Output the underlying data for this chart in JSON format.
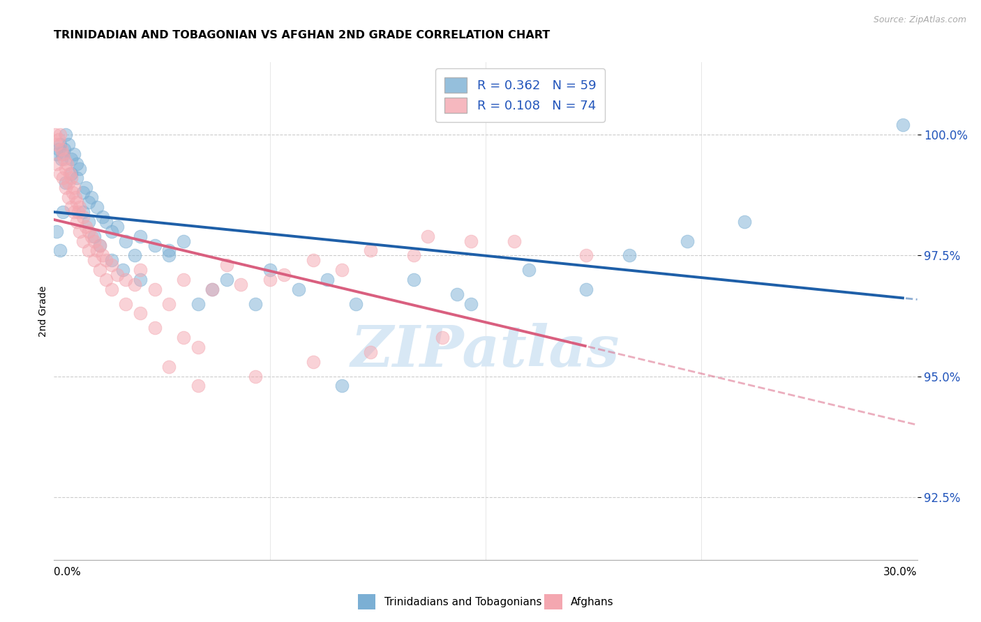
{
  "title": "TRINIDADIAN AND TOBAGONIAN VS AFGHAN 2ND GRADE CORRELATION CHART",
  "source": "Source: ZipAtlas.com",
  "ylabel": "2nd Grade",
  "yticks": [
    92.5,
    95.0,
    97.5,
    100.0
  ],
  "ytick_labels": [
    "92.5%",
    "95.0%",
    "97.5%",
    "100.0%"
  ],
  "xmin": 0.0,
  "xmax": 30.0,
  "ymin": 91.2,
  "ymax": 101.5,
  "legend_blue_label": "R = 0.362   N = 59",
  "legend_pink_label": "R = 0.108   N = 74",
  "blue_color": "#7BAFD4",
  "pink_color": "#F4A7B0",
  "line_blue_color": "#1E5FA8",
  "line_pink_color": "#D95F7F",
  "watermark_text": "ZIPatlas",
  "footer_legend_blue": "Trinidadians and Tobagonians",
  "footer_legend_pink": "Afghans",
  "blue_scatter_x": [
    0.1,
    0.15,
    0.2,
    0.25,
    0.3,
    0.35,
    0.4,
    0.5,
    0.6,
    0.7,
    0.8,
    0.9,
    1.0,
    1.1,
    1.2,
    1.3,
    1.5,
    1.7,
    1.8,
    2.0,
    2.2,
    2.5,
    2.8,
    3.0,
    3.5,
    4.0,
    4.5,
    5.0,
    6.0,
    7.5,
    8.5,
    9.5,
    10.5,
    12.5,
    14.5,
    16.5,
    18.5,
    20.0,
    22.0,
    24.0,
    0.1,
    0.2,
    0.3,
    0.4,
    0.6,
    0.8,
    1.0,
    1.2,
    1.4,
    1.6,
    2.0,
    2.4,
    3.0,
    4.0,
    5.5,
    7.0,
    10.0,
    14.0,
    29.5
  ],
  "blue_scatter_y": [
    99.6,
    99.7,
    99.8,
    99.5,
    99.6,
    99.7,
    100.0,
    99.8,
    99.5,
    99.6,
    99.4,
    99.3,
    98.8,
    98.9,
    98.6,
    98.7,
    98.5,
    98.3,
    98.2,
    98.0,
    98.1,
    97.8,
    97.5,
    97.9,
    97.7,
    97.6,
    97.8,
    96.5,
    97.0,
    97.2,
    96.8,
    97.0,
    96.5,
    97.0,
    96.5,
    97.2,
    96.8,
    97.5,
    97.8,
    98.2,
    98.0,
    97.6,
    98.4,
    99.0,
    99.2,
    99.1,
    98.4,
    98.2,
    97.9,
    97.7,
    97.4,
    97.2,
    97.0,
    97.5,
    96.8,
    96.5,
    94.8,
    96.7,
    100.2
  ],
  "pink_scatter_x": [
    0.05,
    0.1,
    0.15,
    0.2,
    0.25,
    0.3,
    0.35,
    0.4,
    0.45,
    0.5,
    0.55,
    0.6,
    0.65,
    0.7,
    0.75,
    0.8,
    0.85,
    0.9,
    1.0,
    1.1,
    1.2,
    1.3,
    1.4,
    1.5,
    1.6,
    1.7,
    1.8,
    2.0,
    2.2,
    2.5,
    2.8,
    3.0,
    3.5,
    4.0,
    4.5,
    5.5,
    6.5,
    8.0,
    10.0,
    12.5,
    14.5,
    0.1,
    0.2,
    0.3,
    0.4,
    0.5,
    0.6,
    0.7,
    0.8,
    0.9,
    1.0,
    1.2,
    1.4,
    1.6,
    1.8,
    2.0,
    2.5,
    3.0,
    3.5,
    4.5,
    5.0,
    6.0,
    7.5,
    9.0,
    11.0,
    13.0,
    16.0,
    18.5,
    4.0,
    5.0,
    7.0,
    9.0,
    11.0,
    13.5
  ],
  "pink_scatter_y": [
    100.0,
    99.8,
    99.9,
    100.0,
    99.7,
    99.6,
    99.5,
    99.3,
    99.4,
    99.0,
    99.2,
    99.1,
    98.8,
    98.9,
    98.7,
    98.6,
    98.4,
    98.5,
    98.3,
    98.1,
    98.0,
    97.9,
    97.8,
    97.6,
    97.7,
    97.5,
    97.4,
    97.3,
    97.1,
    97.0,
    96.9,
    97.2,
    96.8,
    96.5,
    97.0,
    96.8,
    96.9,
    97.1,
    97.2,
    97.5,
    97.8,
    99.4,
    99.2,
    99.1,
    98.9,
    98.7,
    98.5,
    98.4,
    98.2,
    98.0,
    97.8,
    97.6,
    97.4,
    97.2,
    97.0,
    96.8,
    96.5,
    96.3,
    96.0,
    95.8,
    95.6,
    97.3,
    97.0,
    97.4,
    97.6,
    97.9,
    97.8,
    97.5,
    95.2,
    94.8,
    95.0,
    95.3,
    95.5,
    95.8
  ]
}
